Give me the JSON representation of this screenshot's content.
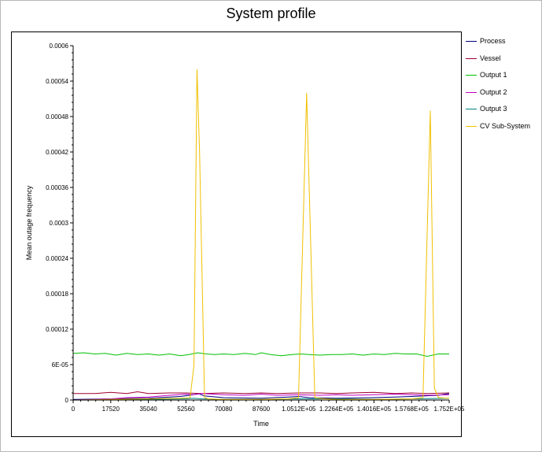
{
  "chart_data": {
    "type": "line",
    "title": "System profile",
    "xlabel": "Time",
    "ylabel": "Mean outage frequency",
    "xlim": [
      0,
      175200
    ],
    "ylim": [
      0,
      0.0006
    ],
    "x_ticks": [
      0,
      17520,
      35040,
      52560,
      70080,
      87600,
      105120,
      122640,
      140160,
      157680,
      175200
    ],
    "x_tick_labels": [
      "0",
      "17520",
      "35040",
      "52560",
      "70080",
      "87600",
      "1.0512E+05",
      "1.2264E+05",
      "1.4016E+05",
      "1.5768E+05",
      "1.752E+05"
    ],
    "y_ticks": [
      0,
      6e-05,
      0.00012,
      0.00018,
      0.00024,
      0.0003,
      0.00036,
      0.00042,
      0.00048,
      0.00054,
      0.0006
    ],
    "y_tick_labels": [
      "0",
      "6E-05",
      "0.00012",
      "0.00018",
      "0.00024",
      "0.0003",
      "0.00036",
      "0.00042",
      "0.00048",
      "0.00054",
      "0.0006"
    ],
    "grid": false,
    "legend_position": "right",
    "series": [
      {
        "name": "Process",
        "color": "#000080",
        "x": [
          0,
          17520,
          35040,
          50000,
          56000,
          58400,
          61000,
          70080,
          87600,
          100000,
          105120,
          110000,
          122640,
          140160,
          157680,
          170000,
          175200
        ],
        "y": [
          1e-06,
          2e-06,
          3e-06,
          6e-06,
          9e-06,
          1.1e-05,
          7e-06,
          4e-06,
          3e-06,
          5e-06,
          6e-06,
          4e-06,
          3e-06,
          4e-06,
          6e-06,
          8e-06,
          1.1e-05
        ]
      },
      {
        "name": "Vessel",
        "color": "#a00030",
        "x": [
          0,
          10000,
          17520,
          25000,
          30000,
          35040,
          45000,
          52560,
          60000,
          70080,
          80000,
          87600,
          95000,
          105120,
          115000,
          122640,
          130000,
          140160,
          150000,
          157680,
          165000,
          175200
        ],
        "y": [
          1.1e-05,
          1.1e-05,
          1.3e-05,
          1.1e-05,
          1.4e-05,
          1.1e-05,
          1.2e-05,
          1.2e-05,
          1.1e-05,
          1.2e-05,
          1.1e-05,
          1.2e-05,
          1.1e-05,
          1.2e-05,
          1.2e-05,
          1.1e-05,
          1.2e-05,
          1.3e-05,
          1.1e-05,
          1.2e-05,
          1.1e-05,
          1.2e-05
        ]
      },
      {
        "name": "Output 1",
        "color": "#00c000",
        "x": [
          0,
          5000,
          10000,
          15000,
          20000,
          25000,
          30000,
          35040,
          40000,
          45000,
          50000,
          54000,
          58000,
          62000,
          66000,
          70080,
          75000,
          80000,
          85000,
          87600,
          92000,
          97000,
          102000,
          106000,
          110000,
          115000,
          120000,
          125000,
          130000,
          135000,
          140160,
          145000,
          150000,
          155000,
          160000,
          165000,
          170000,
          175200
        ],
        "y": [
          7.9e-05,
          8e-05,
          7.8e-05,
          7.9e-05,
          7.6e-05,
          7.9e-05,
          7.7e-05,
          7.8e-05,
          7.6e-05,
          7.8e-05,
          7.5e-05,
          7.7e-05,
          8e-05,
          7.8e-05,
          7.7e-05,
          7.8e-05,
          7.7e-05,
          7.9e-05,
          7.7e-05,
          8e-05,
          7.7e-05,
          7.5e-05,
          7.7e-05,
          7.8e-05,
          7.7e-05,
          7.6e-05,
          7.7e-05,
          7.7e-05,
          7.8e-05,
          7.6e-05,
          7.8e-05,
          7.7e-05,
          7.9e-05,
          7.8e-05,
          7.8e-05,
          7.4e-05,
          7.8e-05,
          7.8e-05
        ]
      },
      {
        "name": "Output 2",
        "color": "#c000c0",
        "x": [
          0,
          10000,
          17520,
          25000,
          35040,
          45000,
          52560,
          56000,
          60000,
          70080,
          80000,
          87600,
          95000,
          105120,
          115000,
          122640,
          130000,
          140160,
          150000,
          157680,
          165000,
          175200
        ],
        "y": [
          0,
          1e-06,
          2e-06,
          4e-06,
          5e-06,
          8e-06,
          1e-05,
          9e-06,
          1.1e-05,
          9e-06,
          8e-06,
          1e-05,
          8e-06,
          9e-06,
          8e-06,
          9e-06,
          8e-06,
          9e-06,
          1e-05,
          9e-06,
          8e-06,
          9e-06
        ]
      },
      {
        "name": "Output 3",
        "color": "#008080",
        "x": [
          0,
          10000,
          17520,
          35040,
          52560,
          56000,
          60000,
          70080,
          87600,
          105120,
          122640,
          140160,
          157680,
          175200
        ],
        "y": [
          0,
          0,
          1e-06,
          1e-06,
          2e-06,
          3e-06,
          2e-06,
          1e-06,
          1e-06,
          2e-06,
          2e-06,
          1e-06,
          2e-06,
          3e-06
        ]
      },
      {
        "name": "CV Sub-System",
        "color": "#f0c000",
        "x": [
          0,
          17520,
          35040,
          50000,
          54500,
          56300,
          57700,
          58900,
          61200,
          63000,
          70080,
          87600,
          100000,
          105000,
          108800,
          112600,
          117000,
          122640,
          140160,
          157680,
          163000,
          166400,
          168300,
          170200,
          175200
        ],
        "y": [
          0,
          1e-06,
          2e-06,
          3e-06,
          4e-06,
          6e-05,
          0.00056,
          0.00042,
          4e-06,
          2e-06,
          1e-06,
          1e-06,
          2e-06,
          4e-06,
          0.00052,
          4e-06,
          2e-06,
          1e-06,
          1e-06,
          2e-06,
          4e-06,
          0.00049,
          2e-05,
          4e-06,
          3e-06
        ]
      }
    ]
  }
}
